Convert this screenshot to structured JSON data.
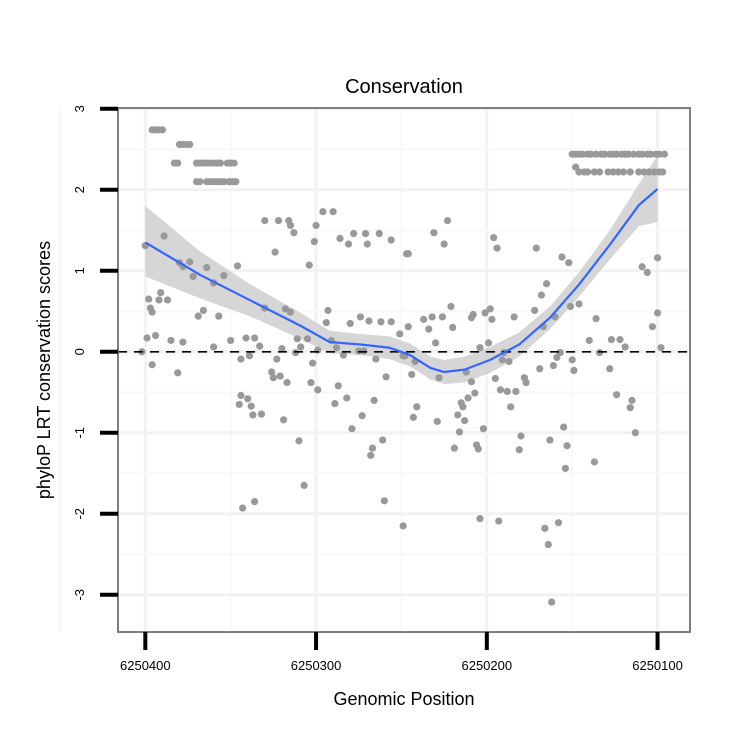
{
  "chart_data": {
    "type": "scatter",
    "title": "Conservation",
    "xlabel": "Genomic Position",
    "ylabel": "phyloP LRT conservation scores",
    "xlim": [
      6250416,
      6250081
    ],
    "x_reversed": true,
    "ylim": [
      -3.46,
      3.01
    ],
    "x_ticks": [
      6250400,
      6250300,
      6250200,
      6250100
    ],
    "x_tick_labels": [
      "6250400",
      "6250300",
      "6250200",
      "6250100"
    ],
    "y_ticks": [
      -3,
      -2,
      -1,
      0,
      1,
      2,
      3
    ],
    "y_tick_labels": [
      "-3",
      "-2",
      "-1",
      "0",
      "1",
      "2",
      "3"
    ],
    "grid": true,
    "reference_line": {
      "y": 0,
      "style": "dashed"
    },
    "colors": {
      "points": "#999999",
      "smooth": "#3366FF",
      "band": "#cccccc",
      "border": "#7f7f7f"
    },
    "points": [
      [
        6250396,
        2.74
      ],
      [
        6250394,
        2.74
      ],
      [
        6250392,
        2.74
      ],
      [
        6250390,
        2.74
      ],
      [
        6250380,
        2.56
      ],
      [
        6250378,
        2.56
      ],
      [
        6250376,
        2.56
      ],
      [
        6250374,
        2.56
      ],
      [
        6250383,
        2.33
      ],
      [
        6250381,
        2.33
      ],
      [
        6250370,
        2.33
      ],
      [
        6250368,
        2.33
      ],
      [
        6250366,
        2.33
      ],
      [
        6250364,
        2.33
      ],
      [
        6250362,
        2.33
      ],
      [
        6250360,
        2.33
      ],
      [
        6250358,
        2.33
      ],
      [
        6250356,
        2.33
      ],
      [
        6250352,
        2.33
      ],
      [
        6250350,
        2.33
      ],
      [
        6250348,
        2.33
      ],
      [
        6250370,
        2.1
      ],
      [
        6250368,
        2.1
      ],
      [
        6250364,
        2.1
      ],
      [
        6250362,
        2.1
      ],
      [
        6250360,
        2.1
      ],
      [
        6250358,
        2.1
      ],
      [
        6250356,
        2.1
      ],
      [
        6250354,
        2.1
      ],
      [
        6250351,
        2.1
      ],
      [
        6250349,
        2.1
      ],
      [
        6250347,
        2.1
      ],
      [
        6250400,
        1.31
      ],
      [
        6250389,
        1.43
      ],
      [
        6250398,
        0.65
      ],
      [
        6250397,
        0.54
      ],
      [
        6250396,
        0.49
      ],
      [
        6250391,
        0.73
      ],
      [
        6250392,
        0.64
      ],
      [
        6250387,
        0.64
      ],
      [
        6250399,
        0.17
      ],
      [
        6250394,
        0.2
      ],
      [
        6250402,
        0.0
      ],
      [
        6250396,
        -0.16
      ],
      [
        6250381,
        -0.26
      ],
      [
        6250385,
        0.14
      ],
      [
        6250378,
        0.12
      ],
      [
        6250380,
        1.1
      ],
      [
        6250374,
        1.11
      ],
      [
        6250378,
        1.05
      ],
      [
        6250372,
        0.93
      ],
      [
        6250364,
        1.04
      ],
      [
        6250360,
        0.85
      ],
      [
        6250354,
        0.94
      ],
      [
        6250346,
        1.06
      ],
      [
        6250369,
        0.44
      ],
      [
        6250366,
        0.51
      ],
      [
        6250357,
        0.44
      ],
      [
        6250360,
        0.06
      ],
      [
        6250350,
        0.14
      ],
      [
        6250330,
        0.54
      ],
      [
        6250318,
        0.53
      ],
      [
        6250315,
        0.49
      ],
      [
        6250341,
        0.17
      ],
      [
        6250336,
        0.17
      ],
      [
        6250333,
        0.07
      ],
      [
        6250320,
        0.04
      ],
      [
        6250323,
        -0.09
      ],
      [
        6250344,
        -0.09
      ],
      [
        6250339,
        -0.05
      ],
      [
        6250326,
        -0.25
      ],
      [
        6250325,
        -0.32
      ],
      [
        6250321,
        -0.3
      ],
      [
        6250317,
        -0.38
      ],
      [
        6250344,
        -0.54
      ],
      [
        6250345,
        -0.65
      ],
      [
        6250340,
        -0.58
      ],
      [
        6250338,
        -0.67
      ],
      [
        6250337,
        -0.78
      ],
      [
        6250332,
        -0.77
      ],
      [
        6250319,
        -0.84
      ],
      [
        6250310,
        -1.1
      ],
      [
        6250307,
        -1.65
      ],
      [
        6250343,
        -1.93
      ],
      [
        6250336,
        -1.85
      ],
      [
        6250330,
        1.62
      ],
      [
        6250322,
        1.62
      ],
      [
        6250316,
        1.62
      ],
      [
        6250315,
        1.56
      ],
      [
        6250313,
        1.47
      ],
      [
        6250324,
        1.23
      ],
      [
        6250300,
        1.56
      ],
      [
        6250301,
        1.36
      ],
      [
        6250304,
        1.07
      ],
      [
        6250296,
        1.73
      ],
      [
        6250290,
        1.73
      ],
      [
        6250286,
        1.4
      ],
      [
        6250281,
        1.33
      ],
      [
        6250278,
        1.46
      ],
      [
        6250271,
        1.46
      ],
      [
        6250270,
        1.33
      ],
      [
        6250263,
        1.46
      ],
      [
        6250256,
        1.38
      ],
      [
        6250247,
        1.21
      ],
      [
        6250293,
        0.51
      ],
      [
        6250294,
        0.36
      ],
      [
        6250291,
        0.14
      ],
      [
        6250311,
        0.16
      ],
      [
        6250305,
        0.16
      ],
      [
        6250309,
        0.06
      ],
      [
        6250312,
        -0.01
      ],
      [
        6250302,
        -0.14
      ],
      [
        6250299,
        0.02
      ],
      [
        6250288,
        0.05
      ],
      [
        6250284,
        -0.04
      ],
      [
        6250303,
        -0.38
      ],
      [
        6250299,
        -0.47
      ],
      [
        6250287,
        -0.42
      ],
      [
        6250282,
        -0.57
      ],
      [
        6250289,
        -0.64
      ],
      [
        6250266,
        -0.6
      ],
      [
        6250273,
        -0.79
      ],
      [
        6250279,
        -0.95
      ],
      [
        6250267,
        -1.19
      ],
      [
        6250268,
        -1.28
      ],
      [
        6250261,
        -1.09
      ],
      [
        6250260,
        -1.84
      ],
      [
        6250249,
        -2.15
      ],
      [
        6250280,
        0.35
      ],
      [
        6250274,
        0.43
      ],
      [
        6250269,
        0.38
      ],
      [
        6250262,
        0.37
      ],
      [
        6250256,
        0.37
      ],
      [
        6250251,
        0.22
      ],
      [
        6250259,
        -0.31
      ],
      [
        6250265,
        -0.09
      ],
      [
        6250275,
        0.01
      ],
      [
        6250272,
        0.01
      ],
      [
        6250248,
        -0.05
      ],
      [
        6250223,
        1.62
      ],
      [
        6250231,
        1.47
      ],
      [
        6250225,
        1.33
      ],
      [
        6250246,
        1.21
      ],
      [
        6250196,
        1.41
      ],
      [
        6250194,
        1.28
      ],
      [
        6250171,
        1.28
      ],
      [
        6250156,
        1.17
      ],
      [
        6250152,
        1.1
      ],
      [
        6250165,
        0.84
      ],
      [
        6250168,
        0.7
      ],
      [
        6250172,
        0.51
      ],
      [
        6250167,
        0.31
      ],
      [
        6250160,
        0.43
      ],
      [
        6250184,
        0.43
      ],
      [
        6250198,
        0.53
      ],
      [
        6250197,
        0.4
      ],
      [
        6250201,
        0.48
      ],
      [
        6250209,
        0.42
      ],
      [
        6250208,
        0.46
      ],
      [
        6250221,
        0.56
      ],
      [
        6250226,
        0.43
      ],
      [
        6250220,
        0.3
      ],
      [
        6250234,
        0.28
      ],
      [
        6250237,
        0.4
      ],
      [
        6250232,
        0.43
      ],
      [
        6250246,
        0.31
      ],
      [
        6250151,
        0.56
      ],
      [
        6250146,
        0.59
      ],
      [
        6250136,
        0.41
      ],
      [
        6250140,
        0.14
      ],
      [
        6250134,
        -0.01
      ],
      [
        6250127,
        0.15
      ],
      [
        6250122,
        0.15
      ],
      [
        6250119,
        0.06
      ],
      [
        6250098,
        0.05
      ],
      [
        6250103,
        0.31
      ],
      [
        6250100,
        0.48
      ],
      [
        6250109,
        1.05
      ],
      [
        6250106,
        0.98
      ],
      [
        6250100,
        1.16
      ],
      [
        6250128,
        -0.21
      ],
      [
        6250124,
        -0.53
      ],
      [
        6250115,
        -0.6
      ],
      [
        6250116,
        -0.69
      ],
      [
        6250113,
        -1.0
      ],
      [
        6250137,
        -1.36
      ],
      [
        6250230,
        0.11
      ],
      [
        6250242,
        -0.12
      ],
      [
        6250244,
        -0.28
      ],
      [
        6250249,
        -0.05
      ],
      [
        6250228,
        -0.32
      ],
      [
        6250241,
        -0.68
      ],
      [
        6250243,
        -0.81
      ],
      [
        6250229,
        -0.86
      ],
      [
        6250212,
        -0.25
      ],
      [
        6250209,
        -0.37
      ],
      [
        6250207,
        -0.51
      ],
      [
        6250211,
        -0.57
      ],
      [
        6250215,
        -0.63
      ],
      [
        6250214,
        -0.68
      ],
      [
        6250217,
        -0.78
      ],
      [
        6250213,
        -0.85
      ],
      [
        6250216,
        -0.99
      ],
      [
        6250219,
        -1.19
      ],
      [
        6250206,
        -1.15
      ],
      [
        6250205,
        -1.2
      ],
      [
        6250202,
        -0.95
      ],
      [
        6250195,
        -0.33
      ],
      [
        6250192,
        -0.47
      ],
      [
        6250188,
        -0.49
      ],
      [
        6250183,
        -0.49
      ],
      [
        6250186,
        -0.68
      ],
      [
        6250191,
        -0.1
      ],
      [
        6250187,
        -0.12
      ],
      [
        6250190,
        -0.01
      ],
      [
        6250178,
        -0.32
      ],
      [
        6250177,
        -0.38
      ],
      [
        6250169,
        -0.21
      ],
      [
        6250161,
        -0.17
      ],
      [
        6250159,
        -0.07
      ],
      [
        6250157,
        -0.01
      ],
      [
        6250150,
        -0.1
      ],
      [
        6250149,
        -0.23
      ],
      [
        6250199,
        0.11
      ],
      [
        6250204,
        0.05
      ],
      [
        6250180,
        -1.04
      ],
      [
        6250181,
        -1.21
      ],
      [
        6250163,
        -1.09
      ],
      [
        6250153,
        -1.16
      ],
      [
        6250155,
        -0.93
      ],
      [
        6250154,
        -1.44
      ],
      [
        6250204,
        -2.06
      ],
      [
        6250193,
        -2.09
      ],
      [
        6250166,
        -2.18
      ],
      [
        6250158,
        -2.11
      ],
      [
        6250164,
        -2.38
      ],
      [
        6250162,
        -3.09
      ],
      [
        6250150,
        2.44
      ],
      [
        6250148,
        2.44
      ],
      [
        6250146,
        2.44
      ],
      [
        6250144,
        2.44
      ],
      [
        6250141,
        2.44
      ],
      [
        6250139,
        2.44
      ],
      [
        6250136,
        2.44
      ],
      [
        6250133,
        2.44
      ],
      [
        6250131,
        2.44
      ],
      [
        6250128,
        2.44
      ],
      [
        6250126,
        2.44
      ],
      [
        6250124,
        2.44
      ],
      [
        6250121,
        2.44
      ],
      [
        6250119,
        2.44
      ],
      [
        6250117,
        2.44
      ],
      [
        6250114,
        2.44
      ],
      [
        6250111,
        2.44
      ],
      [
        6250109,
        2.44
      ],
      [
        6250106,
        2.44
      ],
      [
        6250104,
        2.44
      ],
      [
        6250101,
        2.44
      ],
      [
        6250099,
        2.44
      ],
      [
        6250096,
        2.44
      ],
      [
        6250148,
        2.28
      ],
      [
        6250146,
        2.22
      ],
      [
        6250143,
        2.22
      ],
      [
        6250141,
        2.22
      ],
      [
        6250137,
        2.22
      ],
      [
        6250134,
        2.22
      ],
      [
        6250129,
        2.22
      ],
      [
        6250126,
        2.22
      ],
      [
        6250123,
        2.22
      ],
      [
        6250120,
        2.22
      ],
      [
        6250116,
        2.22
      ],
      [
        6250111,
        2.22
      ],
      [
        6250108,
        2.22
      ],
      [
        6250105,
        2.22
      ],
      [
        6250102,
        2.22
      ],
      [
        6250099,
        2.22
      ],
      [
        6250097,
        2.22
      ]
    ],
    "smooth": {
      "x": [
        6250400,
        6250368,
        6250339,
        6250309,
        6250292,
        6250274,
        6250257,
        6250245,
        6250233,
        6250225,
        6250213,
        6250198,
        6250181,
        6250163,
        6250146,
        6250128,
        6250111,
        6250100
      ],
      "y": [
        1.35,
        0.95,
        0.64,
        0.32,
        0.12,
        0.09,
        0.05,
        -0.04,
        -0.2,
        -0.25,
        -0.22,
        -0.1,
        0.09,
        0.42,
        0.83,
        1.32,
        1.81,
        2.01
      ],
      "lower": [
        0.93,
        0.66,
        0.44,
        0.16,
        -0.02,
        -0.04,
        -0.09,
        -0.18,
        -0.34,
        -0.4,
        -0.38,
        -0.26,
        -0.06,
        0.28,
        0.68,
        1.14,
        1.55,
        1.6
      ],
      "upper": [
        1.8,
        1.24,
        0.84,
        0.48,
        0.26,
        0.22,
        0.19,
        0.1,
        -0.06,
        -0.1,
        -0.06,
        0.06,
        0.24,
        0.56,
        0.98,
        1.5,
        2.07,
        2.42
      ]
    }
  }
}
